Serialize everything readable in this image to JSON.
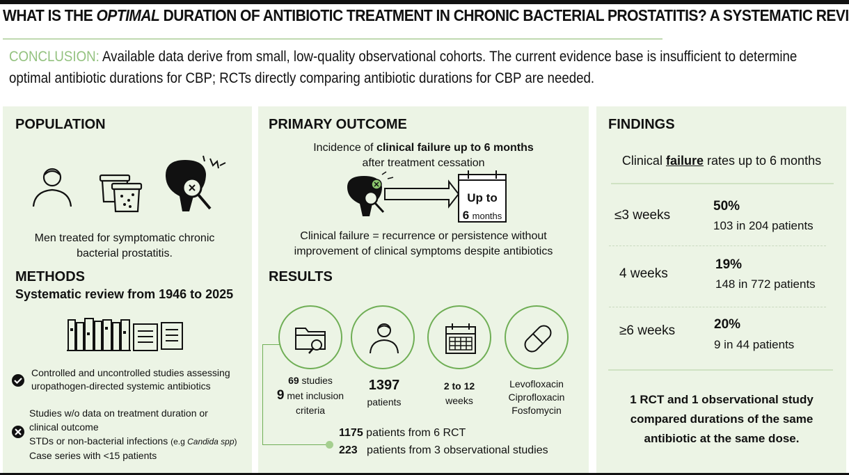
{
  "header": {
    "title_part1": "WHAT IS THE ",
    "title_emph": "OPTIMAL",
    "title_part2": " DURATION OF ANTIBIOTIC TREATMENT IN CHRONIC BACTERIAL PROSTATITIS? A SYSTEMATIC REVIEW",
    "conclusion_label": "CONCLUSION:",
    "conclusion_line1": " Available data derive from small, low-quality observational cohorts. The current evidence base is insufficient to determine",
    "conclusion_line2": "optimal antibiotic durations for CBP; RCTs directly comparing antibiotic durations for CBP are needed."
  },
  "population": {
    "heading": "POPULATION",
    "caption_line1": "Men treated for symptomatic chronic",
    "caption_line2": "bacterial prostatitis.",
    "icons": [
      "person-icon",
      "urine-cups-icon",
      "inflamed-prostate-icon"
    ]
  },
  "methods": {
    "heading": "METHODS",
    "subheading": "Systematic review from 1946 to 2025",
    "include_line1": "Controlled and uncontrolled studies assessing",
    "include_line2": "uropathogen-directed systemic antibiotics",
    "exclude_items": [
      "Studies w/o data on treatment duration or",
      "clinical outcome",
      "STDs or non-bacterial infections ",
      "Case series with <15 patients"
    ],
    "exclude_note_prefix": "(e.g ",
    "exclude_note_italic": "Candida spp",
    "exclude_note_suffix": ")"
  },
  "primary_outcome": {
    "heading": "PRIMARY OUTCOME",
    "line1_a": "Incidence of ",
    "line1_b": "clinical failure up to 6 months",
    "line2": "after treatment cessation",
    "calendar_top": "Up to",
    "calendar_num": "6",
    "calendar_unit": "months",
    "definition_line1": "Clinical failure = recurrence or persistence without",
    "definition_line2": "improvement of clinical symptoms despite antibiotics"
  },
  "results": {
    "heading": "RESULTS",
    "studies_count": "69",
    "studies_label": " studies",
    "met_count": "9",
    "met_label": " met inclusion",
    "met_label2": "criteria",
    "patients_count": "1397",
    "patients_label": "patients",
    "weeks_value": "2 to 12",
    "weeks_label": "weeks",
    "antibiotics": [
      "Levofloxacin",
      "Ciprofloxacin",
      "Fosfomycin"
    ],
    "rct_count": "1175",
    "rct_label": " patients from 6 RCT",
    "obs_count": "223",
    "obs_label": "   patients from 3 observational studies"
  },
  "findings": {
    "heading": "FINDINGS",
    "subtitle_a": "Clinical ",
    "subtitle_b": "failure",
    "subtitle_c": " rates up to 6 months",
    "rows": [
      {
        "duration": "≤3 weeks",
        "rate": "50%",
        "detail": "103 in 204 patients"
      },
      {
        "duration": "4 weeks",
        "rate": "19%",
        "detail": "148 in 772 patients"
      },
      {
        "duration": "≥6 weeks",
        "rate": "20%",
        "detail": "9 in 44 patients"
      }
    ],
    "note_line1": "1 RCT and 1 observational study",
    "note_line2": "compared durations of the same",
    "note_line3": "antibiotic at the same dose."
  },
  "colors": {
    "accent_green": "#94c280",
    "panel_bg": "#ecf4e5",
    "circle_stroke": "#6fae55"
  }
}
